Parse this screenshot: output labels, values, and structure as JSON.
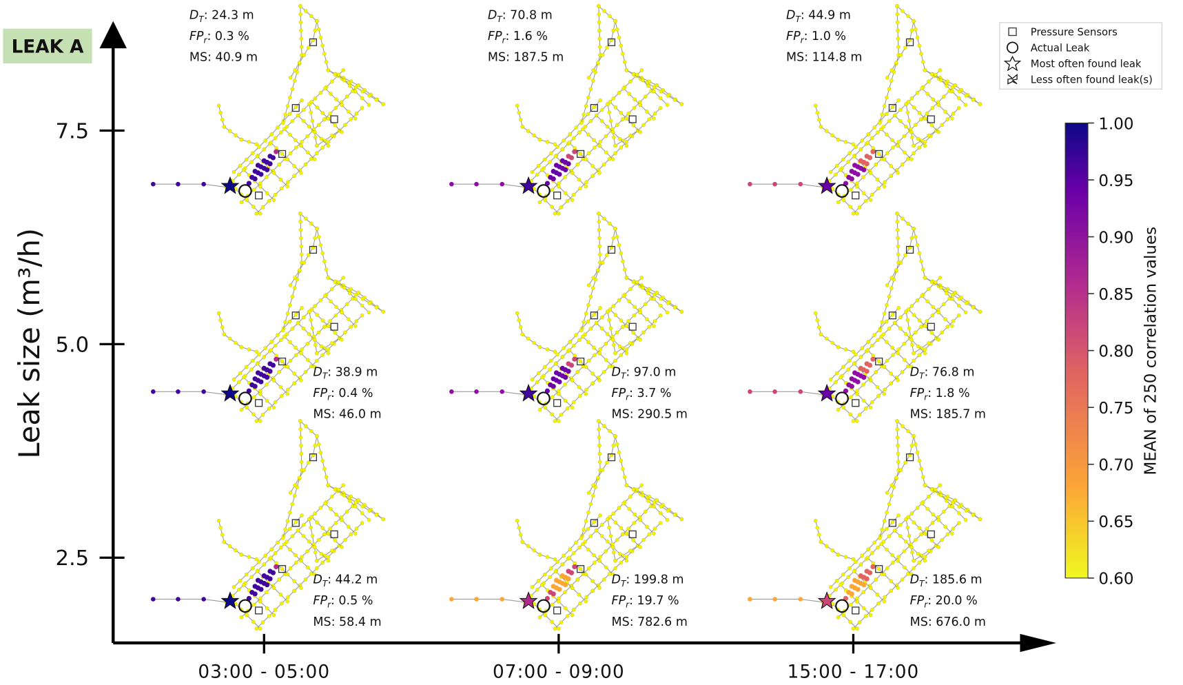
{
  "label": "LEAK A",
  "y_axis": {
    "title": "Leak size (m³/h)",
    "ticks": [
      7.5,
      {
        "value": 5,
        "label": "5.0"
      },
      2.5
    ]
  },
  "x_axis": {
    "categories": [
      "03:00 - 05:00",
      "07:00 - 09:00",
      "15:00 - 17:00"
    ]
  },
  "metric_labels": [
    {
      "text": "D",
      "sub": "T",
      "sep": ":"
    },
    {
      "text": "FP",
      "sub": "r",
      "sep": ":"
    },
    {
      "text": "MS",
      "sep": ":"
    }
  ],
  "panels": [
    [
      {
        "values": [
          "24.3 m",
          "0.3 %",
          "40.9 m"
        ]
      },
      {
        "values": [
          "70.8 m",
          "1.6 %",
          "187.5 m"
        ]
      },
      {
        "values": [
          "44.9 m",
          "1.0 %",
          "114.8 m"
        ]
      }
    ],
    [
      {
        "values": [
          "38.9 m",
          "0.4 %",
          "46.0 m"
        ]
      },
      {
        "values": [
          "97.0 m",
          "3.7 %",
          "290.5 m"
        ]
      },
      {
        "values": [
          "76.8 m",
          "1.8 %",
          "185.7 m"
        ]
      }
    ],
    [
      {
        "values": [
          "44.2 m",
          "0.5 %",
          "58.4 m"
        ]
      },
      {
        "values": [
          "199.8 m",
          "19.7 %",
          "782.6 m"
        ]
      },
      {
        "values": [
          "185.6 m",
          "20.0 %",
          "676.0 m"
        ]
      }
    ]
  ],
  "legend": [
    "Pressure Sensors",
    "Actual Leak",
    "Most often found leak",
    "Less often found leak(s)"
  ],
  "colorbar": {
    "title": "MEAN of 250 correlation values",
    "range": [
      0.6,
      1.0
    ],
    "ticks": [
      {
        "value": 1,
        "label": "1.00"
      },
      0.95,
      {
        "value": 0.9,
        "label": "0.90"
      },
      0.85,
      {
        "value": 0.8,
        "label": "0.80"
      },
      0.75,
      {
        "value": 0.7,
        "label": "0.70"
      },
      0.65,
      {
        "value": 0.6,
        "label": "0.60"
      }
    ]
  }
}
